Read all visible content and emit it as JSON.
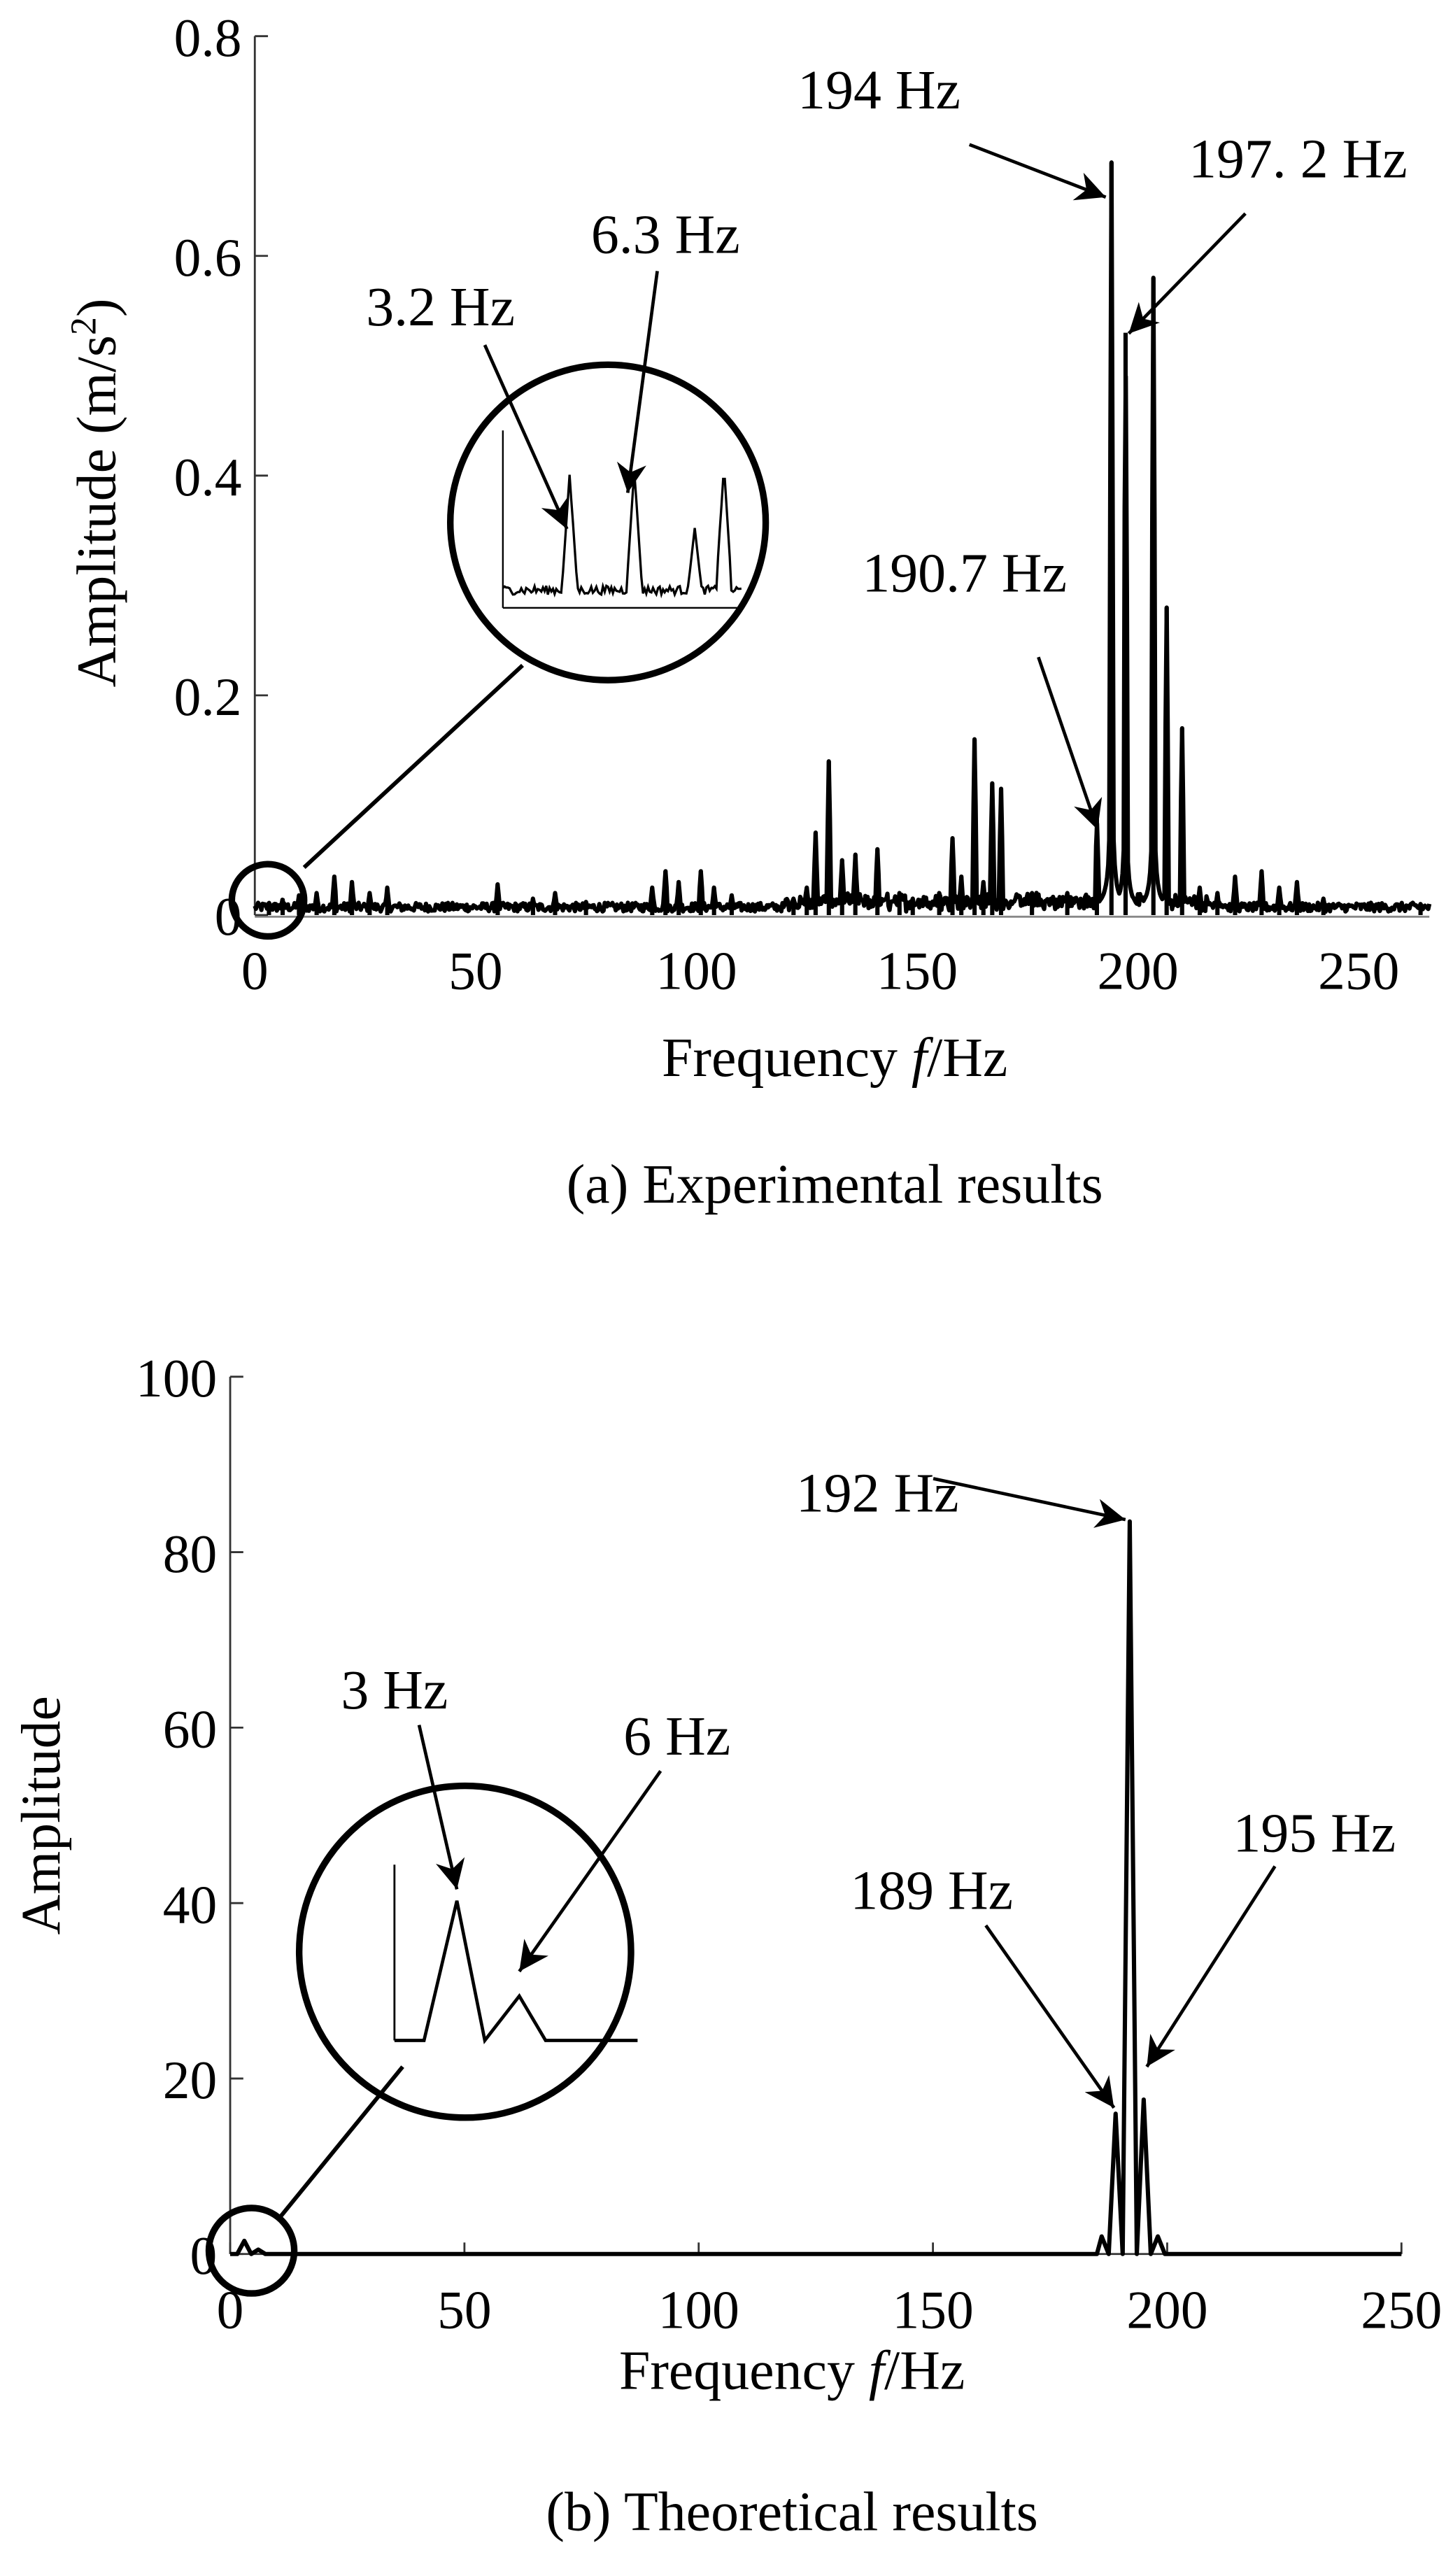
{
  "chart_data": [
    {
      "type": "line",
      "caption": "(a) Experimental results",
      "xlabel_prefix": "Frequency ",
      "xlabel_var": "f",
      "xlabel_suffix": "/Hz",
      "ylabel": "Amplitude (m/s",
      "ylabel_sup": "2",
      "ylabel_end": ")",
      "xlim": [
        0,
        266
      ],
      "ylim": [
        0,
        0.8
      ],
      "xticks": [
        "0",
        "50",
        "100",
        "150",
        "200",
        "250"
      ],
      "xtick_values": [
        0,
        50,
        100,
        150,
        200,
        250
      ],
      "yticks": [
        "0",
        "0.2",
        "0.4",
        "0.6",
        "0.8"
      ],
      "ytick_values": [
        0,
        0.2,
        0.4,
        0.6,
        0.8
      ],
      "noise_level": 0.008,
      "peaks": [
        {
          "x": 3.2,
          "y": 0.012
        },
        {
          "x": 6.3,
          "y": 0.015
        },
        {
          "x": 10,
          "y": 0.018
        },
        {
          "x": 14,
          "y": 0.02
        },
        {
          "x": 18,
          "y": 0.035
        },
        {
          "x": 22,
          "y": 0.03
        },
        {
          "x": 26,
          "y": 0.02
        },
        {
          "x": 30,
          "y": 0.025
        },
        {
          "x": 55,
          "y": 0.028
        },
        {
          "x": 63,
          "y": 0.015
        },
        {
          "x": 68,
          "y": 0.02
        },
        {
          "x": 75,
          "y": 0.012
        },
        {
          "x": 90,
          "y": 0.025
        },
        {
          "x": 93,
          "y": 0.04
        },
        {
          "x": 96,
          "y": 0.03
        },
        {
          "x": 101,
          "y": 0.04
        },
        {
          "x": 104,
          "y": 0.025
        },
        {
          "x": 108,
          "y": 0.018
        },
        {
          "x": 122,
          "y": 0.015
        },
        {
          "x": 125,
          "y": 0.025
        },
        {
          "x": 127,
          "y": 0.075
        },
        {
          "x": 130,
          "y": 0.14
        },
        {
          "x": 133,
          "y": 0.05
        },
        {
          "x": 136,
          "y": 0.055
        },
        {
          "x": 141,
          "y": 0.06
        },
        {
          "x": 146,
          "y": 0.02
        },
        {
          "x": 149,
          "y": 0.015
        },
        {
          "x": 155,
          "y": 0.02
        },
        {
          "x": 158,
          "y": 0.07
        },
        {
          "x": 160,
          "y": 0.035
        },
        {
          "x": 163,
          "y": 0.16
        },
        {
          "x": 165,
          "y": 0.03
        },
        {
          "x": 167,
          "y": 0.12
        },
        {
          "x": 169,
          "y": 0.115
        },
        {
          "x": 176,
          "y": 0.02
        },
        {
          "x": 184,
          "y": 0.02
        },
        {
          "x": 190.7,
          "y": 0.09
        },
        {
          "x": 194,
          "y": 0.685
        },
        {
          "x": 197.2,
          "y": 0.53
        },
        {
          "x": 203.5,
          "y": 0.58
        },
        {
          "x": 206.5,
          "y": 0.28
        },
        {
          "x": 210,
          "y": 0.17
        },
        {
          "x": 214,
          "y": 0.025
        },
        {
          "x": 218,
          "y": 0.02
        },
        {
          "x": 222,
          "y": 0.035
        },
        {
          "x": 228,
          "y": 0.04
        },
        {
          "x": 232,
          "y": 0.025
        },
        {
          "x": 236,
          "y": 0.03
        },
        {
          "x": 242,
          "y": 0.015
        },
        {
          "x": 264,
          "y": 0.01
        }
      ],
      "annotations": [
        {
          "text": "194 Hz",
          "x": 194
        },
        {
          "text": "197. 2 Hz",
          "x": 197.2
        },
        {
          "text": "190.7 Hz",
          "x": 190.7
        },
        {
          "text": "3.2 Hz",
          "x": 3.2
        },
        {
          "text": "6.3 Hz",
          "x": 6.3
        }
      ]
    },
    {
      "type": "line",
      "caption": "(b) Theoretical results",
      "xlabel_prefix": "Frequency ",
      "xlabel_var": "f",
      "xlabel_suffix": "/Hz",
      "ylabel": "Amplitude",
      "xlim": [
        0,
        250
      ],
      "ylim": [
        0,
        100
      ],
      "xticks": [
        "0",
        "50",
        "100",
        "150",
        "200",
        "250"
      ],
      "xtick_values": [
        0,
        50,
        100,
        150,
        200,
        250
      ],
      "yticks": [
        "0",
        "20",
        "40",
        "60",
        "80",
        "100"
      ],
      "ytick_values": [
        0,
        20,
        40,
        60,
        80,
        100
      ],
      "points": [
        [
          0,
          0
        ],
        [
          1.5,
          0
        ],
        [
          3,
          1.5
        ],
        [
          4.5,
          0
        ],
        [
          6,
          0.5
        ],
        [
          7.5,
          0
        ],
        [
          185,
          0
        ],
        [
          186,
          2
        ],
        [
          187.5,
          0
        ],
        [
          189,
          16
        ],
        [
          190.5,
          0
        ],
        [
          192,
          83.5
        ],
        [
          193.5,
          0
        ],
        [
          195,
          17.6
        ],
        [
          196.5,
          0
        ],
        [
          198,
          2
        ],
        [
          199.5,
          0
        ],
        [
          250,
          0
        ]
      ],
      "annotations": [
        {
          "text": "192 Hz",
          "x": 192
        },
        {
          "text": "189 Hz",
          "x": 189
        },
        {
          "text": "195 Hz",
          "x": 195
        },
        {
          "text": "3 Hz",
          "x": 3
        },
        {
          "text": "6 Hz",
          "x": 6
        }
      ]
    }
  ]
}
